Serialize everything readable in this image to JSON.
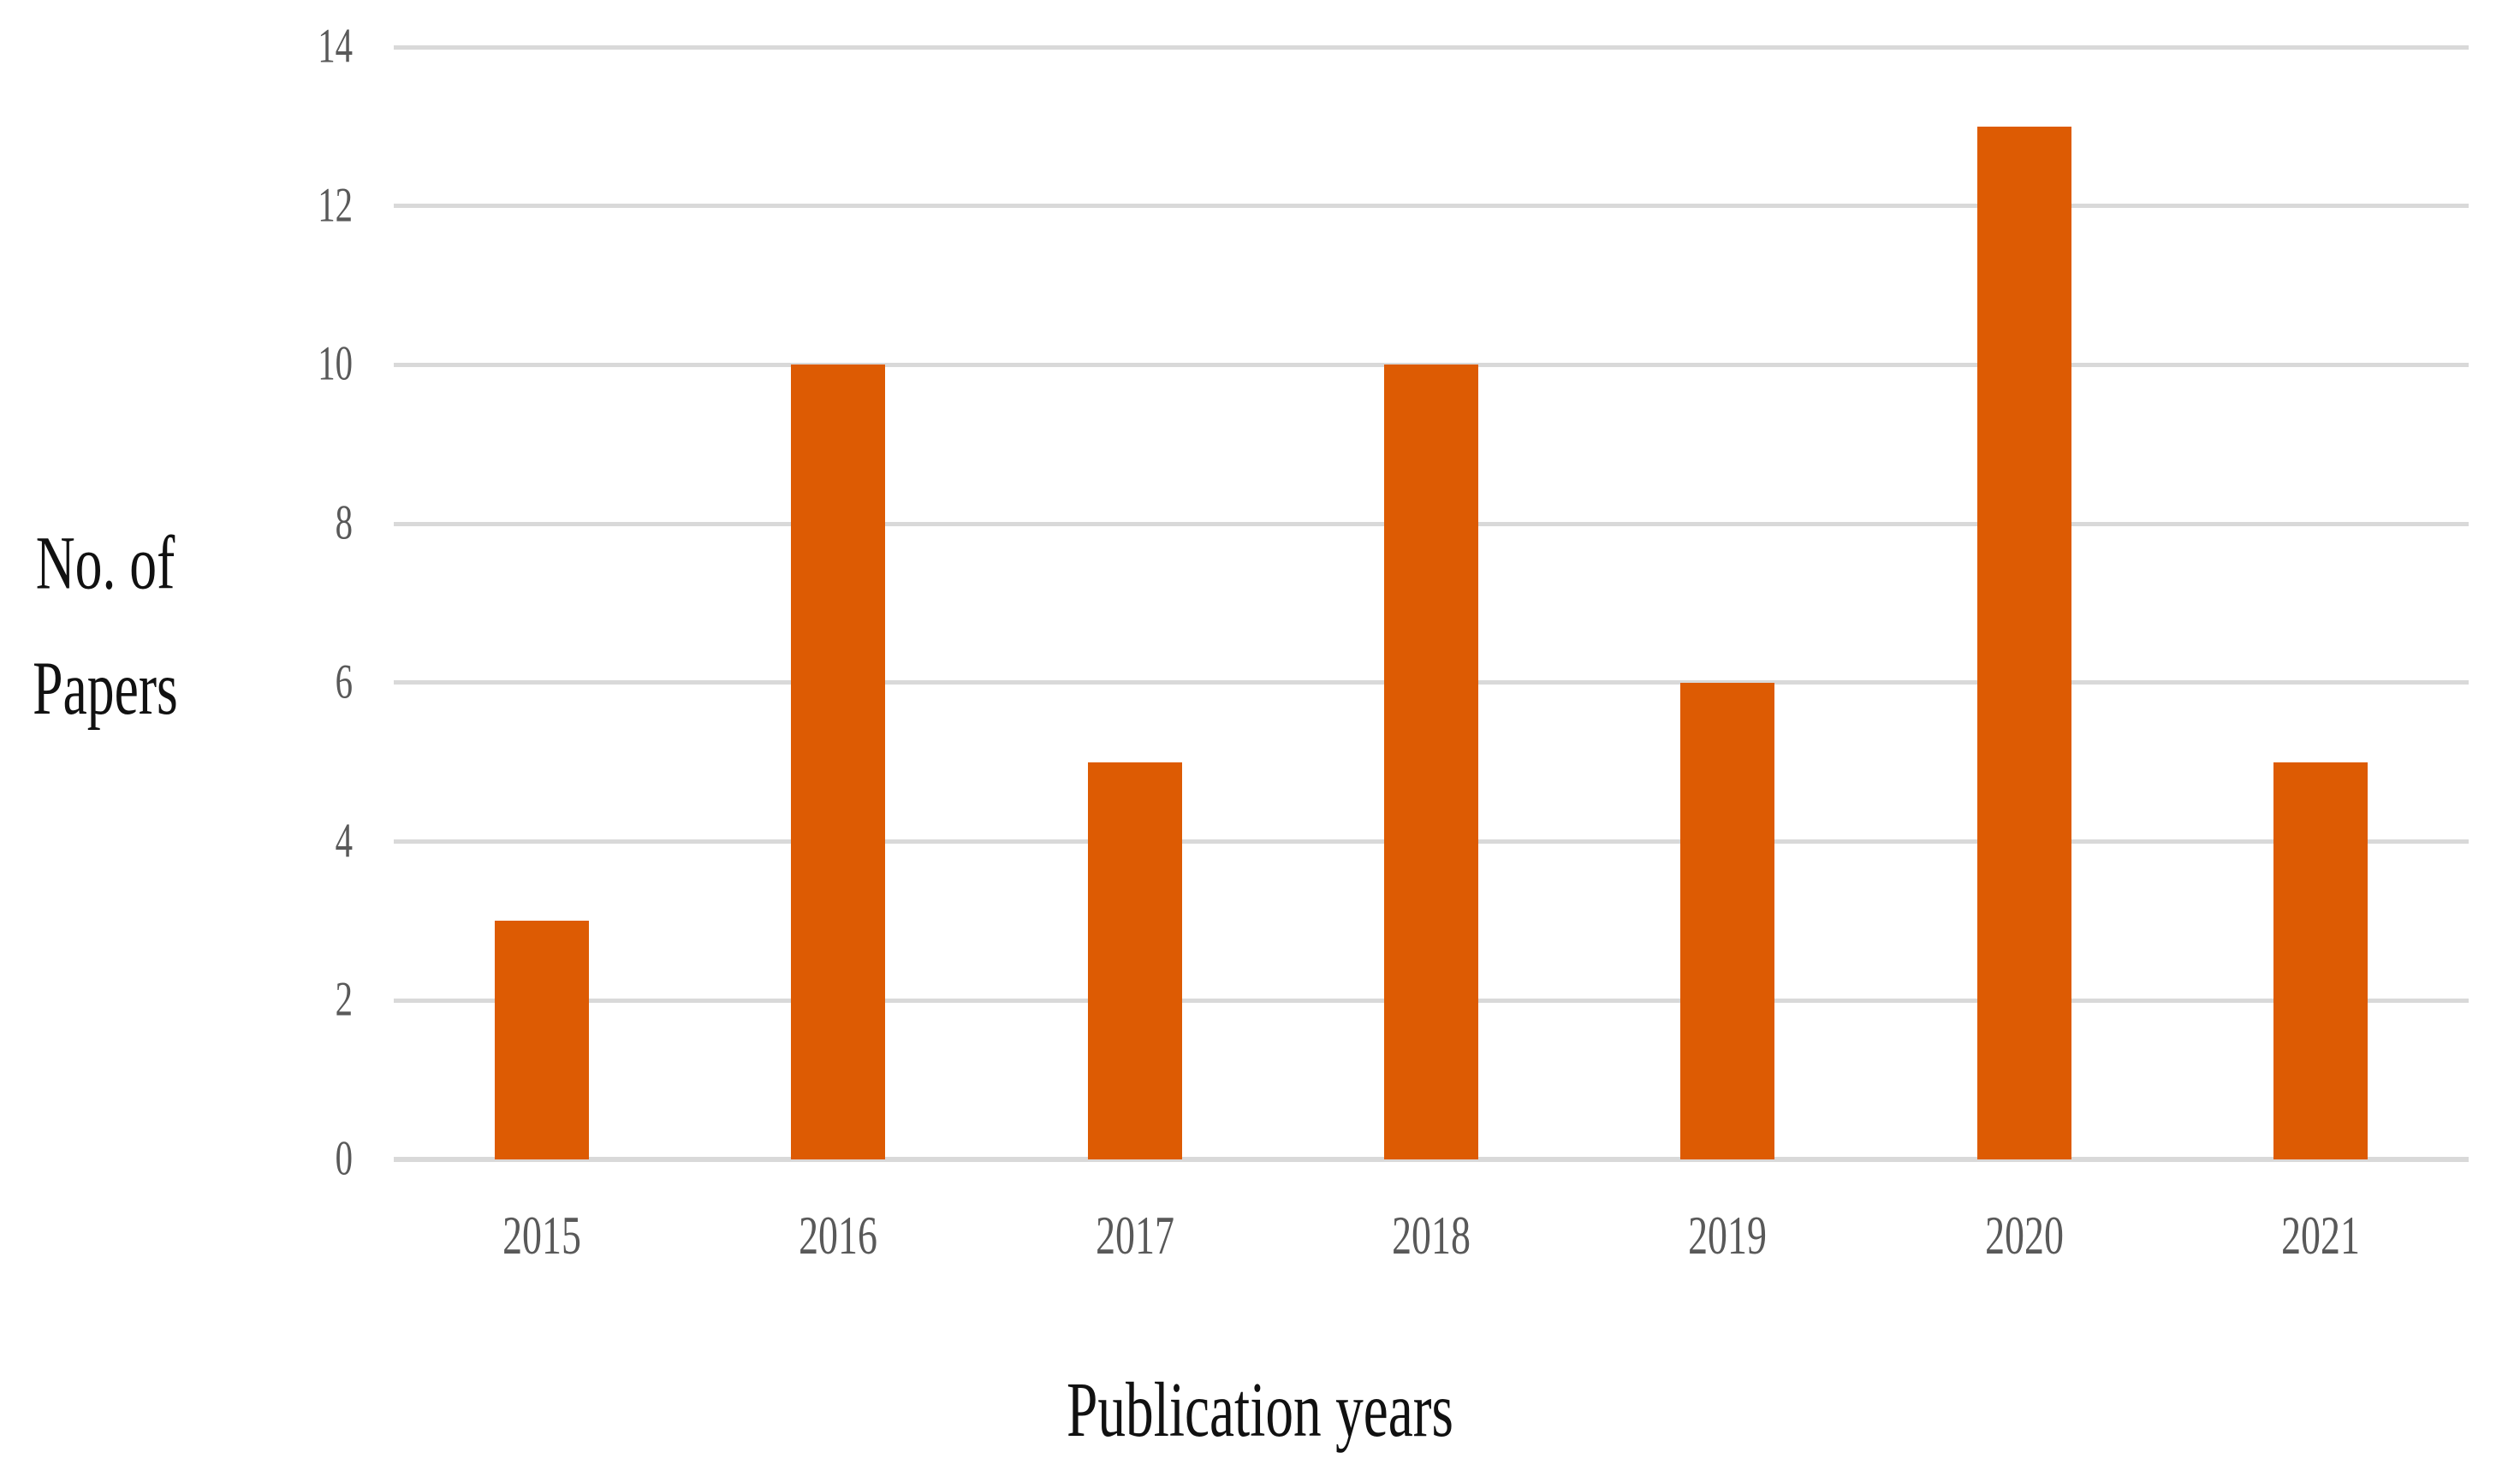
{
  "chart_data": {
    "type": "bar",
    "title": "",
    "categories": [
      "2015",
      "2016",
      "2017",
      "2018",
      "2019",
      "2020",
      "2021"
    ],
    "values": [
      3,
      10,
      5,
      10,
      6,
      13,
      5
    ],
    "xlabel": "Publication years",
    "ylabel": "No. of Papers",
    "ylabel_lines": [
      "No. of",
      "Papers"
    ],
    "yticks": [
      0,
      2,
      4,
      6,
      8,
      10,
      12,
      14
    ],
    "ylim": [
      0,
      14
    ],
    "grid": true,
    "legend_position": "none",
    "colors": {
      "bar": "#DD5B03",
      "gridline": "#D9D9D9",
      "tick_label": "#595959",
      "axis_title": "#111111",
      "background": "#FFFFFF"
    }
  }
}
